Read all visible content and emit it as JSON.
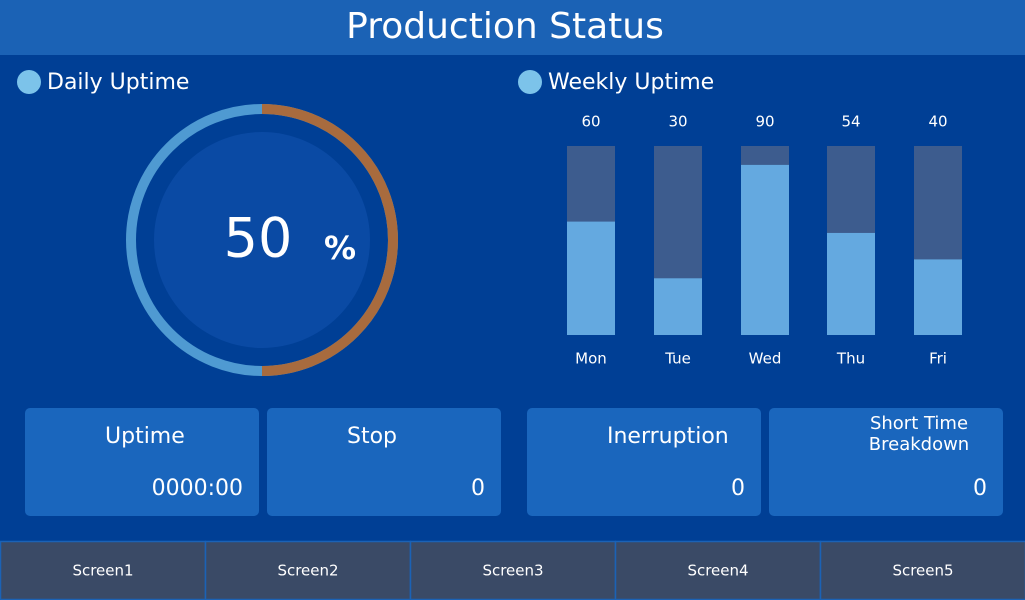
{
  "title": "Production Status",
  "daily_uptime": {
    "label": "Daily Uptime",
    "value": 50,
    "unit": "%",
    "range": [
      0,
      100
    ]
  },
  "chart_data": {
    "type": "bar",
    "title": "Weekly Uptime",
    "categories": [
      "Mon",
      "Tue",
      "Wed",
      "Thu",
      "Fri"
    ],
    "values": [
      60,
      30,
      90,
      54,
      40
    ],
    "color": "#64a9e0",
    "track_color": "#3d5c8e",
    "ylim": [
      0,
      100
    ]
  },
  "cards": [
    {
      "label": "Uptime",
      "value": "0000:00"
    },
    {
      "label": "Stop",
      "value": "0"
    },
    {
      "label": "Inerruption",
      "value": "0"
    },
    {
      "label": "Short Time Breakdown",
      "value": "0"
    }
  ],
  "tabs": [
    "Screen1",
    "Screen2",
    "Screen3",
    "Screen4",
    "Screen5"
  ]
}
